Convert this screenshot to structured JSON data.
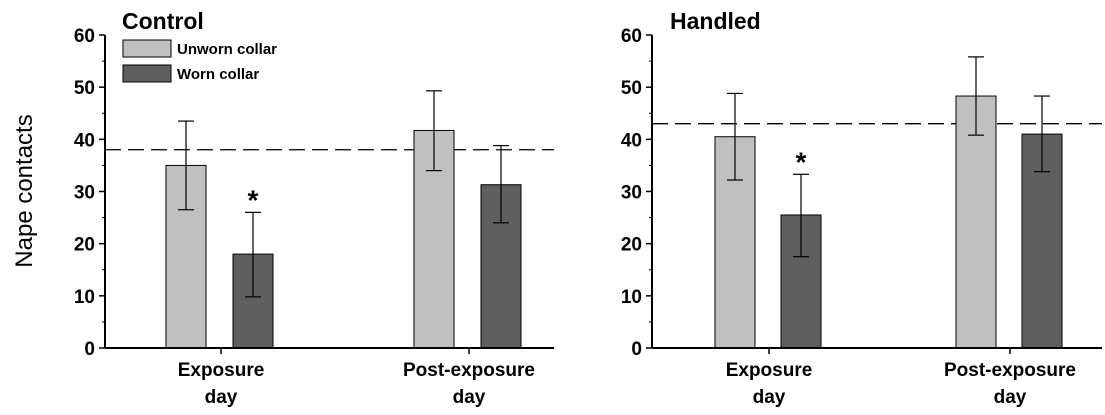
{
  "chart_data": [
    {
      "type": "bar",
      "title": "Control",
      "ylabel": "Nape contacts",
      "xlabel": "",
      "ylim": [
        0,
        60
      ],
      "yticks": [
        "0",
        "10",
        "20",
        "30",
        "40",
        "50",
        "60"
      ],
      "categories": [
        {
          "line1": "Exposure",
          "line2": "day"
        },
        {
          "line1": "Post-exposure",
          "line2": "day"
        }
      ],
      "series": [
        {
          "name": "Unworn collar",
          "color": "#c0c0c0",
          "values": [
            35,
            41.7
          ],
          "err_low": [
            26.5,
            34
          ],
          "err_high": [
            43.5,
            49.3
          ]
        },
        {
          "name": "Worn collar",
          "color": "#5f5f5f",
          "values": [
            18,
            31.3
          ],
          "err_low": [
            9.8,
            24
          ],
          "err_high": [
            26,
            38.8
          ]
        }
      ],
      "reference_line": 38,
      "annotations": [
        {
          "text": "*",
          "category": 0,
          "series": 1
        }
      ],
      "legend": "top-left"
    },
    {
      "type": "bar",
      "title": "Handled",
      "ylabel": "",
      "xlabel": "",
      "ylim": [
        0,
        60
      ],
      "yticks": [
        "0",
        "10",
        "20",
        "30",
        "40",
        "50",
        "60"
      ],
      "categories": [
        {
          "line1": "Exposure",
          "line2": "day"
        },
        {
          "line1": "Post-exposure",
          "line2": "day"
        }
      ],
      "series": [
        {
          "name": "Unworn collar",
          "color": "#c0c0c0",
          "values": [
            40.5,
            48.3
          ],
          "err_low": [
            32.2,
            40.8
          ],
          "err_high": [
            48.8,
            55.8
          ]
        },
        {
          "name": "Worn collar",
          "color": "#5f5f5f",
          "values": [
            25.5,
            41
          ],
          "err_low": [
            17.5,
            33.8
          ],
          "err_high": [
            33.3,
            48.3
          ]
        }
      ],
      "reference_line": 43,
      "annotations": [
        {
          "text": "*",
          "category": 0,
          "series": 1
        }
      ],
      "legend": "none"
    }
  ]
}
